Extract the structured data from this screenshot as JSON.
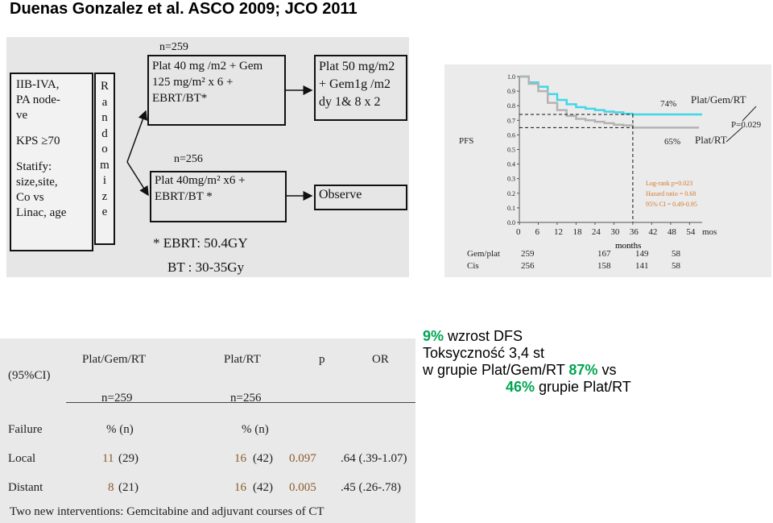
{
  "header": "Duenas Gonzalez et al. ASCO 2009; JCO 2011",
  "schema": {
    "eligibility": [
      "IIB-IVA,",
      "PA node-",
      "ve",
      "KPS ≥70",
      "Statify:",
      "size,site,",
      "Co vs",
      "Linac, age"
    ],
    "randomize_letters": [
      "R",
      "a",
      "n",
      "d",
      "o",
      "m",
      "i",
      "z",
      "e"
    ],
    "arm1_n": "n=259",
    "arm1_lines": [
      "Plat 40 mg /m2 + Gem",
      "125 mg/m² x 6 +",
      "EBRT/BT*"
    ],
    "arm2_n": "n=256",
    "arm2_lines": [
      "Plat 40mg/m² x6 +",
      "EBRT/BT *"
    ],
    "adjuvant_lines": [
      "Plat 50 mg/m2",
      "+ Gem1g /m2",
      "dy 1& 8 x 2"
    ],
    "observe": "Observe",
    "ebrt_note": "* EBRT: 50.4GY",
    "bt_note": "BT : 30-35Gy"
  },
  "km": {
    "y_label": "PFS",
    "y_ticks": [
      "0.0",
      "0.1",
      "0.2",
      "0.3",
      "0.4",
      "0.5",
      "0.6",
      "0.7",
      "0.8",
      "0.9",
      "1.0"
    ],
    "x_ticks": [
      "0",
      "6",
      "12",
      "18",
      "24",
      "30",
      "36",
      "42",
      "48",
      "54"
    ],
    "x_unit": "mos",
    "x_label": "months",
    "label_74": "74%",
    "label_65": "65%",
    "series1_name": "Plat/Gem/RT",
    "series2_name": "Plat/RT",
    "p_value": "P=0.029",
    "stats": [
      "Log-rank p=0.023",
      "Hazard ratio = 0.68",
      "95% CI = 0.49-0.95"
    ],
    "risk_rows": [
      {
        "label": "Gem/plat",
        "values": [
          "259",
          "167",
          "149",
          "58"
        ]
      },
      {
        "label": "Cis",
        "values": [
          "256",
          "158",
          "141",
          "58"
        ]
      }
    ],
    "colors": {
      "series1": "#3fd8e8",
      "series2": "#b3b3b3",
      "orange": "#d47a2c"
    }
  },
  "chart_data": {
    "type": "line",
    "title": "",
    "xlabel": "months",
    "ylabel": "PFS",
    "xlim": [
      0,
      58
    ],
    "ylim": [
      0,
      1
    ],
    "series": [
      {
        "name": "Plat/Gem/RT",
        "x": [
          0,
          3,
          6,
          9,
          12,
          15,
          18,
          21,
          24,
          27,
          30,
          33,
          36,
          42,
          48,
          54,
          57
        ],
        "y": [
          1.0,
          0.96,
          0.93,
          0.88,
          0.84,
          0.81,
          0.79,
          0.78,
          0.77,
          0.76,
          0.755,
          0.745,
          0.74,
          0.74,
          0.74,
          0.74,
          0.74
        ]
      },
      {
        "name": "Plat/RT",
        "x": [
          0,
          3,
          6,
          9,
          12,
          15,
          18,
          21,
          24,
          27,
          30,
          33,
          36,
          42,
          48,
          54,
          57
        ],
        "y": [
          1.0,
          0.95,
          0.9,
          0.82,
          0.77,
          0.73,
          0.71,
          0.7,
          0.69,
          0.68,
          0.67,
          0.665,
          0.65,
          0.65,
          0.65,
          0.65,
          0.65
        ]
      }
    ]
  },
  "summary": {
    "line1_pct": "9%",
    "line1_text": " wzrost DFS",
    "line2": "Toksyczność 3,4 st",
    "line3_text": "w grupie Plat/Gem/RT  ",
    "line3_pct": "87%",
    "line3_tail": " vs",
    "line4_pct": "46%",
    "line4_text": " grupie Plat/RT"
  },
  "failure_table": {
    "head_ci": "(95%CI)",
    "head_col1": "Plat/Gem/RT",
    "head_col2": "Plat/RT",
    "head_p": "p",
    "head_or": "OR",
    "n1": "n=259",
    "n2": "n=256",
    "failure": "Failure",
    "pct_n": "%  (n)",
    "rows": [
      {
        "label": "Local",
        "pct1": "11",
        "n1": "(29)",
        "pct2": "16",
        "n2": "(42)",
        "p": "0.097",
        "or": ".64 (.39-1.07)"
      },
      {
        "label": "Distant",
        "pct1": "8",
        "n1": "(21)",
        "pct2": "16",
        "n2": "(42)",
        "p": "0.005",
        "or": ".45 (.26-.78)"
      }
    ],
    "footer": "Two new interventions: Gemcitabine and adjuvant courses of CT"
  }
}
